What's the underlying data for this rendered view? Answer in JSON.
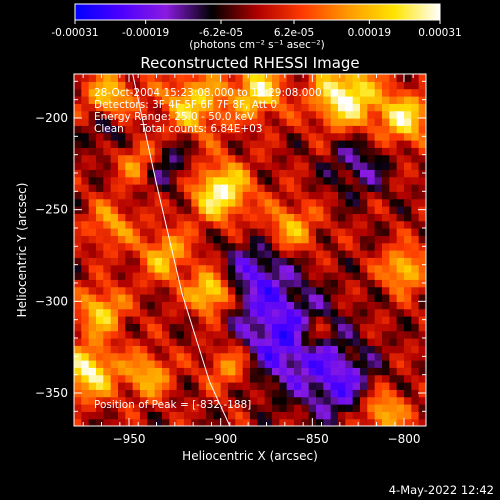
{
  "colorbar": {
    "tick_values": [
      -0.00031,
      -0.00019,
      -6.2e-05,
      6.2e-05,
      0.00019,
      0.00031
    ],
    "tick_labels": [
      "-0.00031",
      "-0.00019",
      "-6.2e-05",
      "6.2e-05",
      "0.00019",
      "0.00031"
    ],
    "unit_label": "(photons cm⁻² s⁻¹ asec⁻²)",
    "range": [
      -0.00031,
      0.00031
    ],
    "colors": [
      "#0000ff",
      "#4b00ff",
      "#8a1be0",
      "#000000",
      "#b00000",
      "#ff3b00",
      "#ff9a00",
      "#ffe400",
      "#ffffff"
    ]
  },
  "chart_data": {
    "type": "heatmap",
    "title": "Reconstructed RHESSI Image",
    "xlabel": "Heliocentric X (arcsec)",
    "ylabel": "Heliocentric Y (arcsec)",
    "xlim": [
      -980,
      -788
    ],
    "ylim": [
      -368,
      -176
    ],
    "x_ticks": [
      -950,
      -900,
      -850,
      -800
    ],
    "y_ticks": [
      -200,
      -250,
      -300,
      -350
    ],
    "x_tick_labels": [
      "−950",
      "−900",
      "−850",
      "−800"
    ],
    "y_tick_labels": [
      "−200",
      "−250",
      "−300",
      "−350"
    ],
    "grid": false,
    "annotation_lines": [
      "28-Oct-2004 15:23:08.000 to 15:29:08.000",
      "Detectors: 3F 4F 5F 6F 7F 8F, Att 0",
      "Energy Range: 25.0 - 50.0 keV",
      "Clean     Total counts: 6.84E+03"
    ],
    "peak_label": "Position of Peak = [-832,-188]",
    "peak_position": [
      -832,
      -188
    ],
    "limb_curve": {
      "x": [
        -948,
        -935,
        -921,
        -906,
        -895
      ],
      "y": [
        -176,
        -236,
        -296,
        -344,
        -368
      ]
    },
    "hot_regions": [
      {
        "x": -960,
        "y": -190,
        "sigma": 10,
        "amp": 0.75
      },
      {
        "x": -915,
        "y": -192,
        "sigma": 12,
        "amp": 0.7
      },
      {
        "x": -880,
        "y": -185,
        "sigma": 10,
        "amp": 0.8
      },
      {
        "x": -832,
        "y": -188,
        "sigma": 12,
        "amp": 1.0
      },
      {
        "x": -800,
        "y": -200,
        "sigma": 10,
        "amp": 0.8
      },
      {
        "x": -945,
        "y": -222,
        "sigma": 9,
        "amp": 0.6
      },
      {
        "x": -900,
        "y": -240,
        "sigma": 11,
        "amp": 0.95
      },
      {
        "x": -905,
        "y": -295,
        "sigma": 8,
        "amp": 0.95
      },
      {
        "x": -862,
        "y": -260,
        "sigma": 10,
        "amp": 0.6
      },
      {
        "x": -930,
        "y": -275,
        "sigma": 10,
        "amp": 0.6
      },
      {
        "x": -965,
        "y": -305,
        "sigma": 9,
        "amp": 0.7
      },
      {
        "x": -972,
        "y": -338,
        "sigma": 10,
        "amp": 0.9
      },
      {
        "x": -940,
        "y": -340,
        "sigma": 9,
        "amp": 0.6
      },
      {
        "x": -895,
        "y": -335,
        "sigma": 9,
        "amp": 0.55
      },
      {
        "x": -800,
        "y": -282,
        "sigma": 8,
        "amp": 0.75
      },
      {
        "x": -812,
        "y": -360,
        "sigma": 9,
        "amp": 0.7
      },
      {
        "x": -850,
        "y": -318,
        "sigma": 6,
        "amp": 0.55
      },
      {
        "x": -960,
        "y": -258,
        "sigma": 9,
        "amp": 0.5
      }
    ],
    "cold_regions": [
      {
        "x": -865,
        "y": -320,
        "sigma": 18,
        "amp": 0.75
      },
      {
        "x": -835,
        "y": -345,
        "sigma": 14,
        "amp": 0.6
      },
      {
        "x": -960,
        "y": -205,
        "sigma": 10,
        "amp": 0.45
      },
      {
        "x": -930,
        "y": -225,
        "sigma": 10,
        "amp": 0.45
      },
      {
        "x": -825,
        "y": -225,
        "sigma": 12,
        "amp": 0.4
      },
      {
        "x": -880,
        "y": -285,
        "sigma": 14,
        "amp": 0.55
      }
    ]
  },
  "timestamp": "4-May-2022 12:42"
}
